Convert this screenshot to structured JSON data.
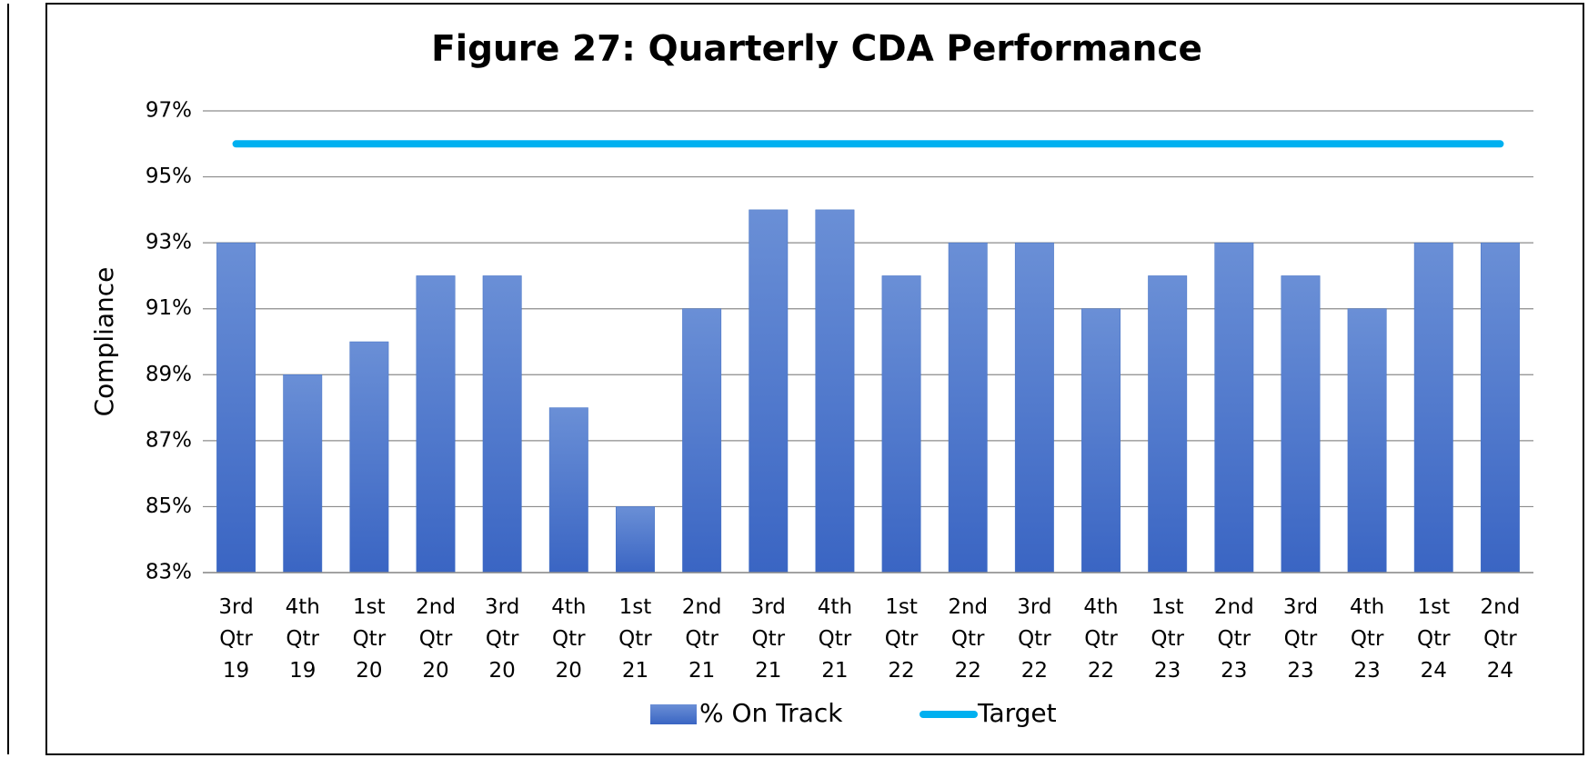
{
  "chart_data": {
    "type": "bar",
    "title": "Figure 27: Quarterly CDA Performance",
    "y_label": "Compliance",
    "categories": [
      "3rd Qtr 19",
      "4th Qtr 19",
      "1st Qtr 20",
      "2nd Qtr 20",
      "3rd Qtr 20",
      "4th Qtr 20",
      "1st Qtr 21",
      "2nd Qtr 21",
      "3rd Qtr 21",
      "4th Qtr 21",
      "1st Qtr 22",
      "2nd Qtr 22",
      "3rd Qtr 22",
      "4th Qtr 22",
      "1st Qtr 23",
      "2nd Qtr 23",
      "3rd Qtr 23",
      "4th Qtr 23",
      "1st Qtr 24",
      "2nd Qtr 24"
    ],
    "series": [
      {
        "name": "% On Track",
        "type": "bar",
        "color": "#4472c4",
        "values": [
          93,
          89,
          90,
          92,
          92,
          88,
          85,
          91,
          94,
          94,
          92,
          93,
          93,
          91,
          92,
          93,
          92,
          91,
          93,
          93
        ]
      },
      {
        "name": "Target",
        "type": "line",
        "color": "#00b0f0",
        "values": [
          96,
          96,
          96,
          96,
          96,
          96,
          96,
          96,
          96,
          96,
          96,
          96,
          96,
          96,
          96,
          96,
          96,
          96,
          96,
          96
        ]
      }
    ],
    "ylim": [
      83,
      97
    ],
    "yticks": [
      {
        "value": 83,
        "label": "83%"
      },
      {
        "value": 85,
        "label": "85%"
      },
      {
        "value": 87,
        "label": "87%"
      },
      {
        "value": 89,
        "label": "89%"
      },
      {
        "value": 91,
        "label": "91%"
      },
      {
        "value": 93,
        "label": "93%"
      },
      {
        "value": 95,
        "label": "95%"
      },
      {
        "value": 97,
        "label": "97%"
      }
    ],
    "grid": true,
    "legend": "bottom"
  }
}
